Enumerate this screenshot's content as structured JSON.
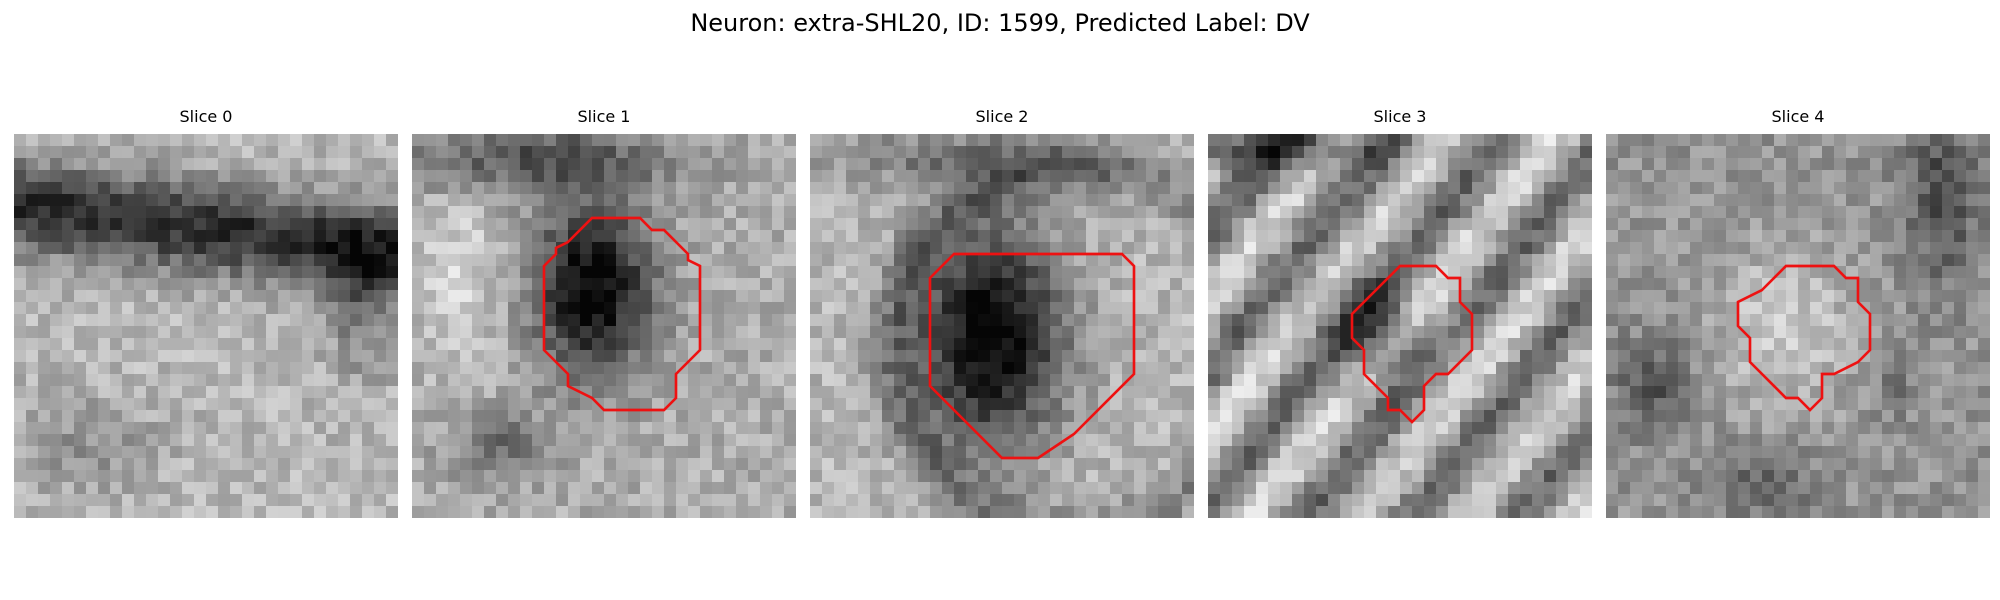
{
  "figure": {
    "title": "Neuron: extra-SHL20, ID: 1599, Predicted Label: DV"
  },
  "panels": [
    {
      "title": "Slice 0",
      "has_contour": false,
      "pattern": "band"
    },
    {
      "title": "Slice 1",
      "has_contour": true,
      "pattern": "dark-blob"
    },
    {
      "title": "Slice 2",
      "has_contour": true,
      "pattern": "dark-blob-large"
    },
    {
      "title": "Slice 3",
      "has_contour": true,
      "pattern": "diagonal-stripes"
    },
    {
      "title": "Slice 4",
      "has_contour": true,
      "pattern": "light-blob"
    }
  ],
  "colors": {
    "contour": "#ee1111",
    "colormap": "grayscale"
  },
  "grid": {
    "cells": 32
  }
}
